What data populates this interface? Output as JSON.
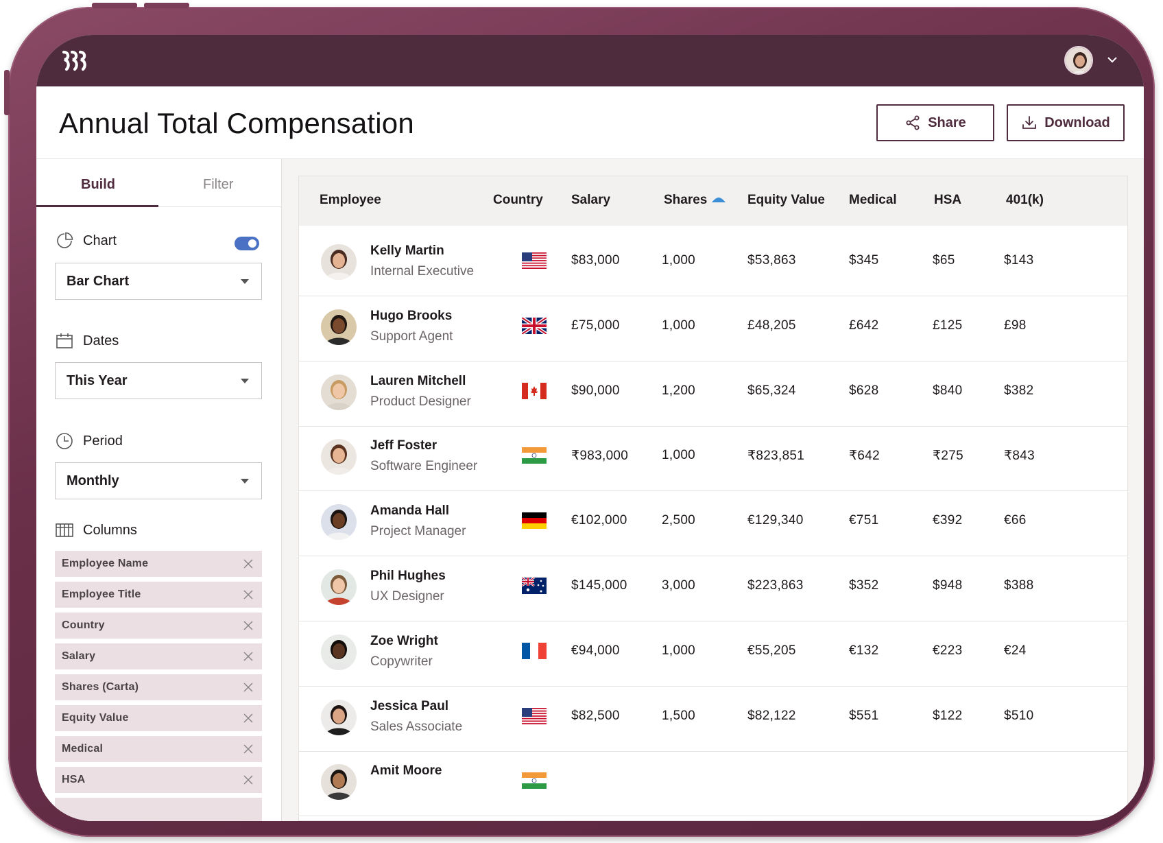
{
  "header": {
    "title": "Annual Total Compensation",
    "share_label": "Share",
    "download_label": "Download"
  },
  "sidebar": {
    "tabs": [
      {
        "label": "Build"
      },
      {
        "label": "Filter"
      }
    ],
    "chart": {
      "label": "Chart",
      "enabled": true,
      "value": "Bar Chart"
    },
    "dates": {
      "label": "Dates",
      "value": "This Year"
    },
    "period": {
      "label": "Period",
      "value": "Monthly"
    },
    "columns": {
      "label": "Columns",
      "items": [
        "Employee Name",
        "Employee Title",
        "Country",
        "Salary",
        "Shares (Carta)",
        "Equity Value",
        "Medical",
        "HSA"
      ]
    }
  },
  "table": {
    "headers": [
      "Employee",
      "Country",
      "Salary",
      "Shares",
      "Equity Value",
      "Medical",
      "HSA",
      "401(k)"
    ],
    "sorted_column": "Shares",
    "rows": [
      {
        "name": "Kelly Martin",
        "title": "Internal Executive",
        "country": "us-flag-icon",
        "salary": "$83,000",
        "shares": "1,000",
        "equity": "$53,863",
        "medical": "$345",
        "hsa": "$65",
        "k401": "$143"
      },
      {
        "name": "Hugo Brooks",
        "title": "Support Agent",
        "country": "uk-flag-icon",
        "salary": "£75,000",
        "shares": "1,000",
        "equity": "£48,205",
        "medical": "£642",
        "hsa": "£125",
        "k401": "£98"
      },
      {
        "name": "Lauren Mitchell",
        "title": "Product Designer",
        "country": "canada-flag-icon",
        "salary": "$90,000",
        "shares": "1,200",
        "equity": "$65,324",
        "medical": "$628",
        "hsa": "$840",
        "k401": "$382"
      },
      {
        "name": "Jeff Foster",
        "title": "Software Engineer",
        "country": "india-flag-icon",
        "salary": "₹983,000",
        "shares": "1,000",
        "equity": "₹823,851",
        "medical": "₹642",
        "hsa": "₹275",
        "k401": "₹843"
      },
      {
        "name": "Amanda Hall",
        "title": "Project Manager",
        "country": "germany-flag-icon",
        "salary": "€102,000",
        "shares": "2,500",
        "equity": "€129,340",
        "medical": "€751",
        "hsa": "€392",
        "k401": "€66"
      },
      {
        "name": "Phil Hughes",
        "title": "UX Designer",
        "country": "australia-flag-icon",
        "salary": "$145,000",
        "shares": "3,000",
        "equity": "$223,863",
        "medical": "$352",
        "hsa": "$948",
        "k401": "$388"
      },
      {
        "name": "Zoe Wright",
        "title": "Copywriter",
        "country": "france-flag-icon",
        "salary": "€94,000",
        "shares": "1,000",
        "equity": "€55,205",
        "medical": "€132",
        "hsa": "€223",
        "k401": "€24"
      },
      {
        "name": "Jessica Paul",
        "title": "Sales Associate",
        "country": "us-flag-icon",
        "salary": "$82,500",
        "shares": "1,500",
        "equity": "$82,122",
        "medical": "$551",
        "hsa": "$122",
        "k401": "$510"
      },
      {
        "name": "Amit Moore",
        "title": "",
        "country": "india-flag-icon",
        "salary": "",
        "shares": "",
        "equity": "",
        "medical": "",
        "hsa": "",
        "k401": ""
      }
    ]
  },
  "colors": {
    "brand": "#4f2c3d",
    "frame": "#6a2f49",
    "chip": "#ecdfe3",
    "toggle": "#4a71c4",
    "sort_accent": "#3a8fd6"
  }
}
